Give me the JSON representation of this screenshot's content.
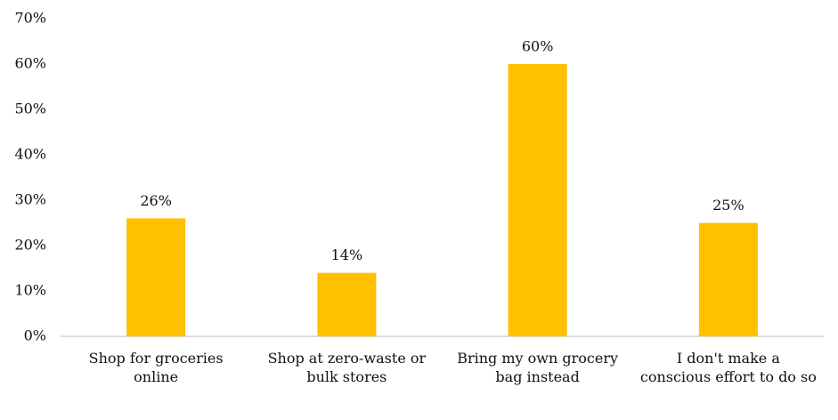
{
  "chart_data": {
    "type": "bar",
    "categories": [
      "Shop for groceries online",
      "Shop at zero-waste or bulk stores",
      "Bring my own grocery bag instead",
      "I don't make a conscious effort to do so"
    ],
    "values": [
      26,
      14,
      60,
      25
    ],
    "value_labels": [
      "26%",
      "14%",
      "60%",
      "25%"
    ],
    "color": "#ffc000",
    "ylim": [
      0,
      70
    ],
    "yticks": [
      {
        "value": 0,
        "label": "0%"
      },
      {
        "value": 10,
        "label": "10%"
      },
      {
        "value": 20,
        "label": "20%"
      },
      {
        "value": 30,
        "label": "30%"
      },
      {
        "value": 40,
        "label": "40%"
      },
      {
        "value": 50,
        "label": "50%"
      },
      {
        "value": 60,
        "label": "60%"
      },
      {
        "value": 70,
        "label": "70%"
      }
    ],
    "grid": false
  }
}
